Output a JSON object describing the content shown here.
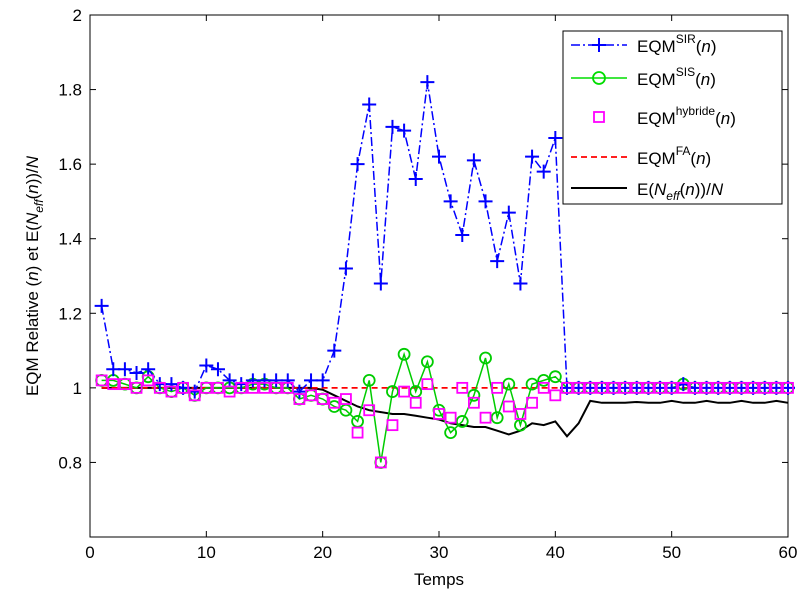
{
  "chart_data": {
    "type": "line",
    "xlabel": "Temps",
    "ylabel": {
      "main": "EQM Relative (",
      "n1": "n",
      "mid": ") et E(",
      "N": "N",
      "eff": "eff",
      "lp": "(",
      "n2": "n",
      "rp": "))/",
      "N2": "N"
    },
    "xlim": [
      0,
      60
    ],
    "ylim": [
      0.6,
      2.0
    ],
    "xticks": [
      "0",
      "10",
      "20",
      "30",
      "40",
      "50",
      "60"
    ],
    "yticks": [
      "0.8",
      "1",
      "1.2",
      "1.4",
      "1.6",
      "1.8",
      "2"
    ],
    "grid": false,
    "legend_position": "top-right",
    "series": [
      {
        "name": "EQM^SIR(n)",
        "label": {
          "base": "EQM",
          "sup": "SIR",
          "open": "(",
          "arg": "n",
          "close": ")"
        },
        "color": "#0000ff",
        "line": "dashdot",
        "marker": "plus",
        "x": [
          1,
          2,
          3,
          4,
          5,
          6,
          7,
          8,
          9,
          10,
          11,
          12,
          13,
          14,
          15,
          16,
          17,
          18,
          19,
          20,
          21,
          22,
          23,
          24,
          25,
          26,
          27,
          28,
          29,
          30,
          31,
          32,
          33,
          34,
          35,
          36,
          37,
          38,
          39,
          40,
          41,
          42,
          43,
          44,
          45,
          46,
          47,
          48,
          49,
          50,
          51,
          52,
          53,
          54,
          55,
          56,
          57,
          58,
          59,
          60
        ],
        "y": [
          1.22,
          1.05,
          1.05,
          1.04,
          1.05,
          1.01,
          1.01,
          1.0,
          0.99,
          1.06,
          1.05,
          1.02,
          1.01,
          1.02,
          1.02,
          1.02,
          1.02,
          0.99,
          1.02,
          1.02,
          1.1,
          1.32,
          1.6,
          1.76,
          1.28,
          1.7,
          1.69,
          1.56,
          1.82,
          1.62,
          1.5,
          1.41,
          1.61,
          1.5,
          1.34,
          1.47,
          1.28,
          1.62,
          1.58,
          1.67,
          1.0,
          1.0,
          1.0,
          1.0,
          1.0,
          1.0,
          1.0,
          1.0,
          1.0,
          1.0,
          1.01,
          1.0,
          1.0,
          1.0,
          1.0,
          1.0,
          1.0,
          1.0,
          1.0,
          1.0
        ]
      },
      {
        "name": "EQM^SIS(n)",
        "label": {
          "base": "EQM",
          "sup": "SIS",
          "open": "(",
          "arg": "n",
          "close": ")"
        },
        "color": "#00cc00",
        "line": "solid",
        "marker": "circle",
        "x": [
          1,
          2,
          3,
          4,
          5,
          6,
          7,
          8,
          9,
          10,
          11,
          12,
          13,
          14,
          15,
          16,
          17,
          18,
          19,
          20,
          21,
          22,
          23,
          24,
          25,
          26,
          27,
          28,
          29,
          30,
          31,
          32,
          33,
          34,
          35,
          36,
          37,
          38,
          39,
          40,
          41,
          42,
          43,
          44,
          45,
          46,
          47,
          48,
          49,
          50,
          51,
          52,
          53,
          54,
          55,
          56,
          57,
          58,
          59,
          60
        ],
        "y": [
          1.02,
          1.02,
          1.01,
          1.0,
          1.03,
          1.0,
          0.99,
          1.0,
          0.98,
          1.0,
          1.0,
          1.0,
          1.0,
          1.01,
          1.01,
          1.0,
          1.0,
          0.97,
          0.98,
          0.97,
          0.95,
          0.94,
          0.91,
          1.02,
          0.8,
          0.99,
          1.09,
          0.99,
          1.07,
          0.94,
          0.88,
          0.91,
          0.98,
          1.08,
          0.92,
          1.01,
          0.9,
          1.01,
          1.02,
          1.03,
          1.0,
          1.0,
          1.0,
          1.0,
          1.0,
          1.0,
          1.0,
          1.0,
          1.0,
          1.0,
          1.01,
          1.0,
          1.0,
          1.0,
          1.0,
          1.0,
          1.0,
          1.0,
          1.0,
          1.0
        ]
      },
      {
        "name": "EQM^hybride(n)",
        "label": {
          "base": "EQM",
          "sup": "hybride",
          "open": "(",
          "arg": "n",
          "close": ")"
        },
        "color": "#ff00ff",
        "line": "none",
        "marker": "square",
        "x": [
          1,
          2,
          3,
          4,
          5,
          6,
          7,
          8,
          9,
          10,
          11,
          12,
          13,
          14,
          15,
          16,
          17,
          18,
          19,
          20,
          21,
          22,
          23,
          24,
          25,
          26,
          27,
          28,
          29,
          30,
          31,
          32,
          33,
          34,
          35,
          36,
          37,
          38,
          39,
          40,
          41,
          42,
          43,
          44,
          45,
          46,
          47,
          48,
          49,
          50,
          51,
          52,
          53,
          54,
          55,
          56,
          57,
          58,
          59,
          60
        ],
        "y": [
          1.02,
          1.01,
          1.01,
          1.0,
          1.02,
          1.0,
          0.99,
          1.0,
          0.98,
          1.0,
          1.0,
          0.99,
          1.0,
          1.0,
          1.0,
          1.0,
          1.0,
          0.97,
          0.98,
          0.97,
          0.96,
          0.97,
          0.88,
          0.94,
          0.8,
          0.9,
          0.99,
          0.96,
          1.01,
          0.93,
          0.92,
          1.0,
          0.96,
          0.92,
          1.0,
          0.95,
          0.93,
          0.96,
          1.0,
          0.98,
          1.0,
          1.0,
          1.0,
          1.0,
          1.0,
          1.0,
          1.0,
          1.0,
          1.0,
          1.0,
          1.0,
          1.0,
          1.0,
          1.0,
          1.0,
          1.0,
          1.0,
          1.0,
          1.0,
          1.0
        ]
      },
      {
        "name": "EQM^FA(n)",
        "label": {
          "base": "EQM",
          "sup": "FA",
          "open": "(",
          "arg": "n",
          "close": ")"
        },
        "color": "#ff0000",
        "line": "dashed",
        "marker": "none",
        "x": [
          1,
          60
        ],
        "y": [
          1.0,
          1.0
        ]
      },
      {
        "name": "E(N_eff(n))/N",
        "label": {
          "pre": "E(",
          "base": "N",
          "sub": "eff",
          "open": "(",
          "arg": "n",
          "close": "))/",
          "tail": "N"
        },
        "color": "#000000",
        "line": "solid",
        "marker": "none",
        "x": [
          1,
          2,
          3,
          4,
          5,
          6,
          7,
          8,
          9,
          10,
          11,
          12,
          13,
          14,
          15,
          16,
          17,
          18,
          19,
          20,
          21,
          22,
          23,
          24,
          25,
          26,
          27,
          28,
          29,
          30,
          31,
          32,
          33,
          34,
          35,
          36,
          37,
          38,
          39,
          40,
          41,
          42,
          43,
          44,
          45,
          46,
          47,
          48,
          49,
          50,
          51,
          52,
          53,
          54,
          55,
          56,
          57,
          58,
          59,
          60
        ],
        "y": [
          1.0,
          1.0,
          1.0,
          1.0,
          1.0,
          1.0,
          1.0,
          1.0,
          1.0,
          1.0,
          1.0,
          1.0,
          1.0,
          1.0,
          1.0,
          1.0,
          1.0,
          1.0,
          1.0,
          0.995,
          0.98,
          0.965,
          0.95,
          0.94,
          0.935,
          0.93,
          0.93,
          0.925,
          0.92,
          0.915,
          0.905,
          0.9,
          0.895,
          0.895,
          0.885,
          0.875,
          0.885,
          0.905,
          0.9,
          0.91,
          0.87,
          0.905,
          0.965,
          0.96,
          0.96,
          0.96,
          0.962,
          0.96,
          0.96,
          0.965,
          0.96,
          0.96,
          0.965,
          0.96,
          0.96,
          0.965,
          0.96,
          0.96,
          0.965,
          0.96
        ]
      }
    ]
  }
}
